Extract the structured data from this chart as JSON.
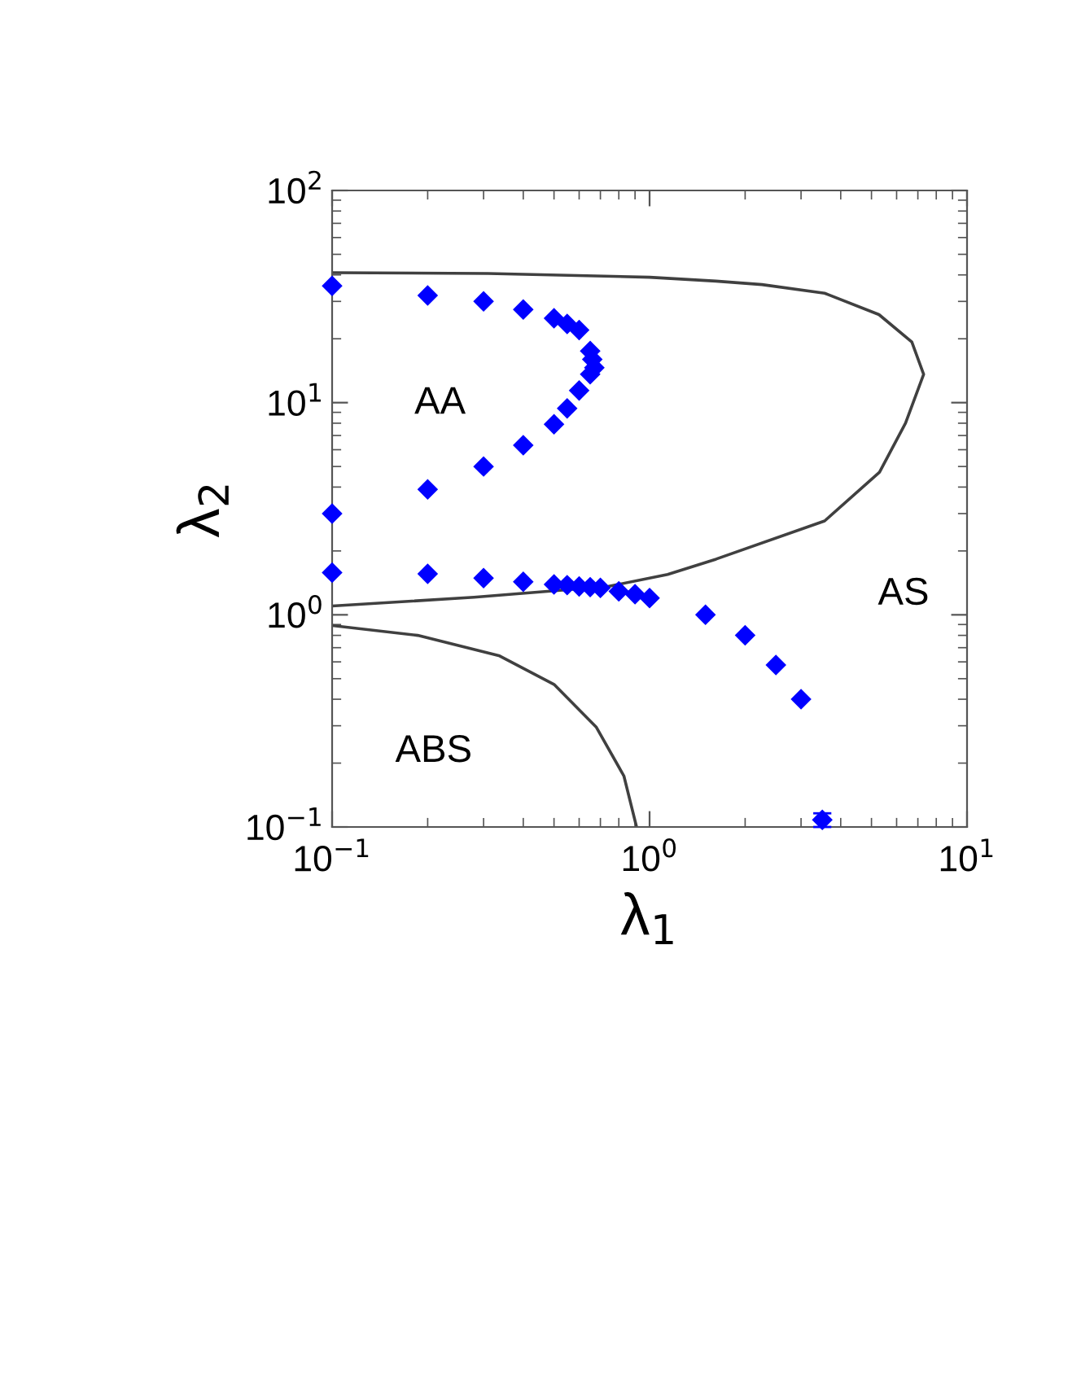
{
  "chart_data": {
    "type": "scatter",
    "xlabel": "λ$_{1}$",
    "ylabel": "λ$_{2}$",
    "log": "xy",
    "xlim": [
      0.1,
      10
    ],
    "ylim": [
      0.1,
      100
    ],
    "xticks": [
      {
        "value": 0.1,
        "label": "10$^{−1}$"
      },
      {
        "value": 1,
        "label": "10$^{0}$"
      },
      {
        "value": 10,
        "label": "10$^{1}$"
      }
    ],
    "yticks": [
      {
        "value": 0.1,
        "label": "10$^{−1}$"
      },
      {
        "value": 1,
        "label": "10$^{0}$"
      },
      {
        "value": 10,
        "label": "10$^{1}$"
      },
      {
        "value": 100,
        "label": "10$^{2}$"
      }
    ],
    "grid": false,
    "annotations": [
      "AA",
      "AS",
      "ABS"
    ],
    "series": [
      {
        "type": "line",
        "color": "#404040",
        "x": [
          0.1,
          0.31,
          1.0,
          1.62,
          2.26,
          3.56,
          5.28,
          6.7,
          7.3,
          6.4,
          5.3,
          3.56,
          1.62,
          1.14,
          0.74,
          0.28,
          0.1
        ],
        "values": [
          41,
          40.6,
          39,
          37.4,
          36,
          32.8,
          26,
          19.3,
          13.6,
          8.0,
          4.7,
          2.77,
          1.83,
          1.55,
          1.36,
          1.21,
          1.1
        ]
      },
      {
        "type": "line",
        "color": "#404040",
        "x": [
          0.1,
          0.186,
          0.337,
          0.5,
          0.68,
          0.83,
          0.91
        ],
        "values": [
          0.89,
          0.8,
          0.64,
          0.47,
          0.295,
          0.174,
          0.1
        ]
      },
      {
        "color": "#0000ff",
        "marker": "diamond",
        "x": [
          0.1,
          0.2,
          0.3,
          0.4,
          0.5,
          0.55,
          0.6,
          0.65,
          0.66,
          0.67,
          0.65,
          0.6,
          0.55,
          0.5,
          0.4,
          0.3,
          0.2,
          0.1,
          0.1,
          0.2,
          0.3,
          0.4,
          0.5,
          0.55,
          0.6,
          0.65,
          0.7,
          0.8,
          0.9,
          1.0,
          1.5,
          2.0,
          2.5,
          3.0,
          3.5
        ],
        "values": [
          35.5,
          32,
          30,
          27.5,
          25,
          23.5,
          22,
          17.5,
          16,
          14.6,
          13.6,
          11.4,
          9.4,
          7.9,
          6.3,
          5.0,
          3.9,
          3.0,
          1.58,
          1.56,
          1.49,
          1.43,
          1.39,
          1.38,
          1.36,
          1.35,
          1.34,
          1.29,
          1.25,
          1.2,
          1.0,
          0.8,
          0.58,
          0.4,
          0.108
        ],
        "errors": [
          null,
          null,
          null,
          null,
          null,
          null,
          null,
          null,
          null,
          null,
          null,
          null,
          null,
          null,
          null,
          null,
          null,
          null,
          null,
          null,
          null,
          null,
          null,
          null,
          null,
          null,
          null,
          null,
          null,
          null,
          null,
          null,
          null,
          null,
          [
            0.1,
            0.116
          ]
        ]
      }
    ]
  }
}
